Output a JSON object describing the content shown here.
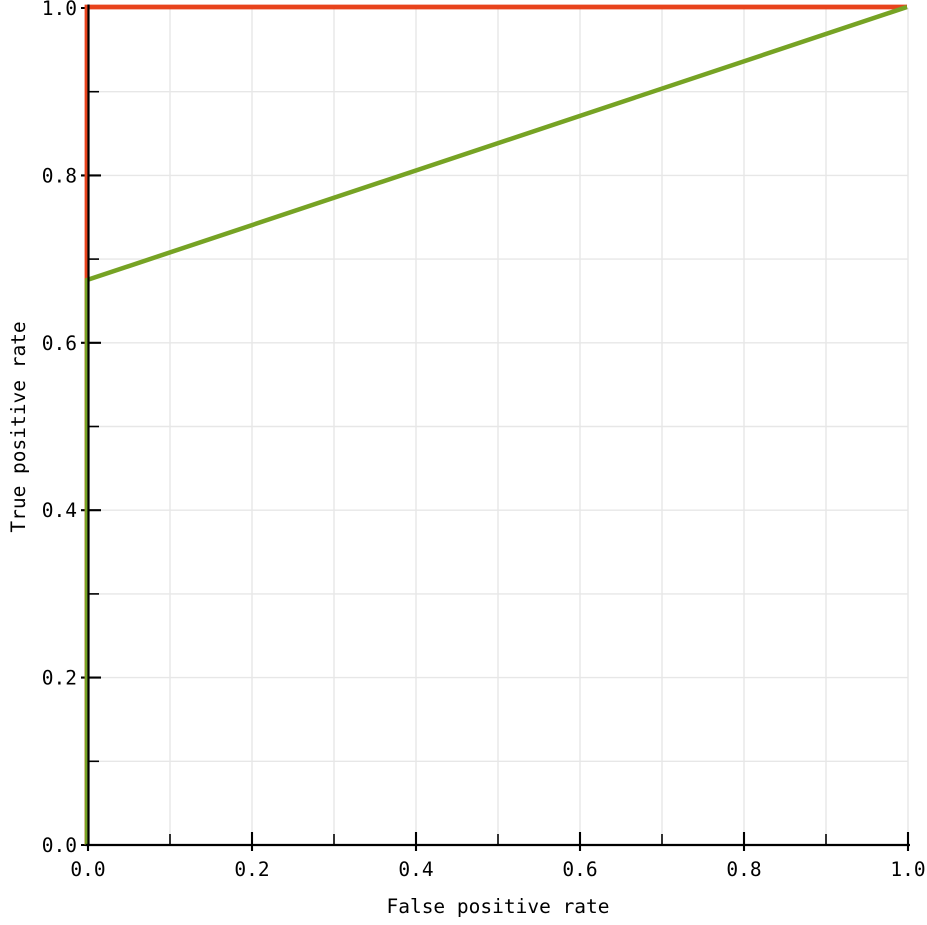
{
  "figure": {
    "background_color": "#ffffff",
    "axis_color": "#000000",
    "grid_color": "#e7e7e7",
    "tick_label_color": "#000000"
  },
  "chart_data": {
    "type": "line",
    "title": "",
    "xlabel": "False positive rate",
    "ylabel": "True positive rate",
    "xlim": [
      0,
      1
    ],
    "ylim": [
      0,
      1
    ],
    "grid": "on",
    "grid_step": 0.1,
    "legend": "none",
    "x_ticks": {
      "values": [
        0.0,
        0.2,
        0.4,
        0.6,
        0.8,
        1.0
      ],
      "labels": [
        "0.0",
        "0.2",
        "0.4",
        "0.6",
        "0.8",
        "1.0"
      ],
      "minor_values": [
        0.1,
        0.3,
        0.5,
        0.7,
        0.9
      ]
    },
    "y_ticks": {
      "values": [
        0.0,
        0.2,
        0.4,
        0.6,
        0.8,
        1.0
      ],
      "labels": [
        "0.0",
        "0.2",
        "0.4",
        "0.6",
        "0.8",
        "1.0"
      ],
      "minor_values": [
        0.1,
        0.3,
        0.5,
        0.7,
        0.9
      ]
    },
    "series": [
      {
        "name": "ideal-roc-curve",
        "color": "#e8431c",
        "stroke_width": 4.8,
        "points": [
          [
            0,
            0
          ],
          [
            0,
            1
          ],
          [
            1,
            1
          ]
        ]
      },
      {
        "name": "classifier-roc-curve",
        "color": "#76a324",
        "stroke_width": 4.5,
        "points": [
          [
            0,
            0
          ],
          [
            0,
            0.675
          ],
          [
            1,
            1
          ]
        ]
      }
    ]
  }
}
